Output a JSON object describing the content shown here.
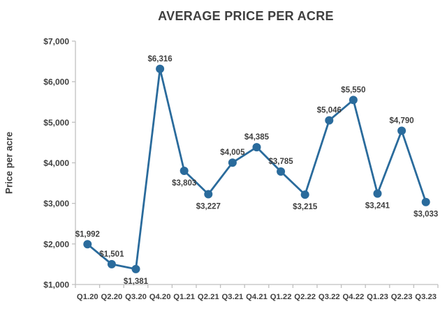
{
  "chart_data": {
    "type": "line",
    "title": "AVERAGE PRICE PER ACRE",
    "xlabel": "",
    "ylabel": "Price per acre",
    "categories": [
      "Q1.20",
      "Q2.20",
      "Q3.20",
      "Q4.20",
      "Q1.21",
      "Q2.21",
      "Q3.21",
      "Q4.21",
      "Q1.22",
      "Q2.22",
      "Q3.22",
      "Q4.22",
      "Q1.23",
      "Q2.23",
      "Q3.23"
    ],
    "series": [
      {
        "name": "Average price per acre",
        "values": [
          1992,
          1501,
          1381,
          6316,
          3803,
          3227,
          4005,
          4385,
          3785,
          3215,
          5046,
          5550,
          3241,
          4790,
          3033
        ],
        "color": "#2a6b9c"
      }
    ],
    "point_labels": [
      "$1,992",
      "$1,501",
      "$1,381",
      "$6,316",
      "$3,803",
      "$3,227",
      "$4,005",
      "$4,385",
      "$3,785",
      "$3,215",
      "$5,046",
      "$5,550",
      "$3,241",
      "$4,790",
      "$3,033"
    ],
    "label_sides": [
      "above",
      "above",
      "below",
      "above",
      "below",
      "below",
      "above",
      "above",
      "above",
      "below",
      "above",
      "above",
      "below",
      "above",
      "below"
    ],
    "ylim": [
      1000,
      7000
    ],
    "ytick_step": 1000,
    "ytick_labels": [
      "$1,000",
      "$2,000",
      "$3,000",
      "$4,000",
      "$5,000",
      "$6,000",
      "$7,000"
    ],
    "grid": false,
    "legend": "none"
  },
  "colors": {
    "line": "#2a6b9c",
    "text": "#3f3f3f",
    "axis": "#bfbfbf",
    "background": "#ffffff"
  }
}
